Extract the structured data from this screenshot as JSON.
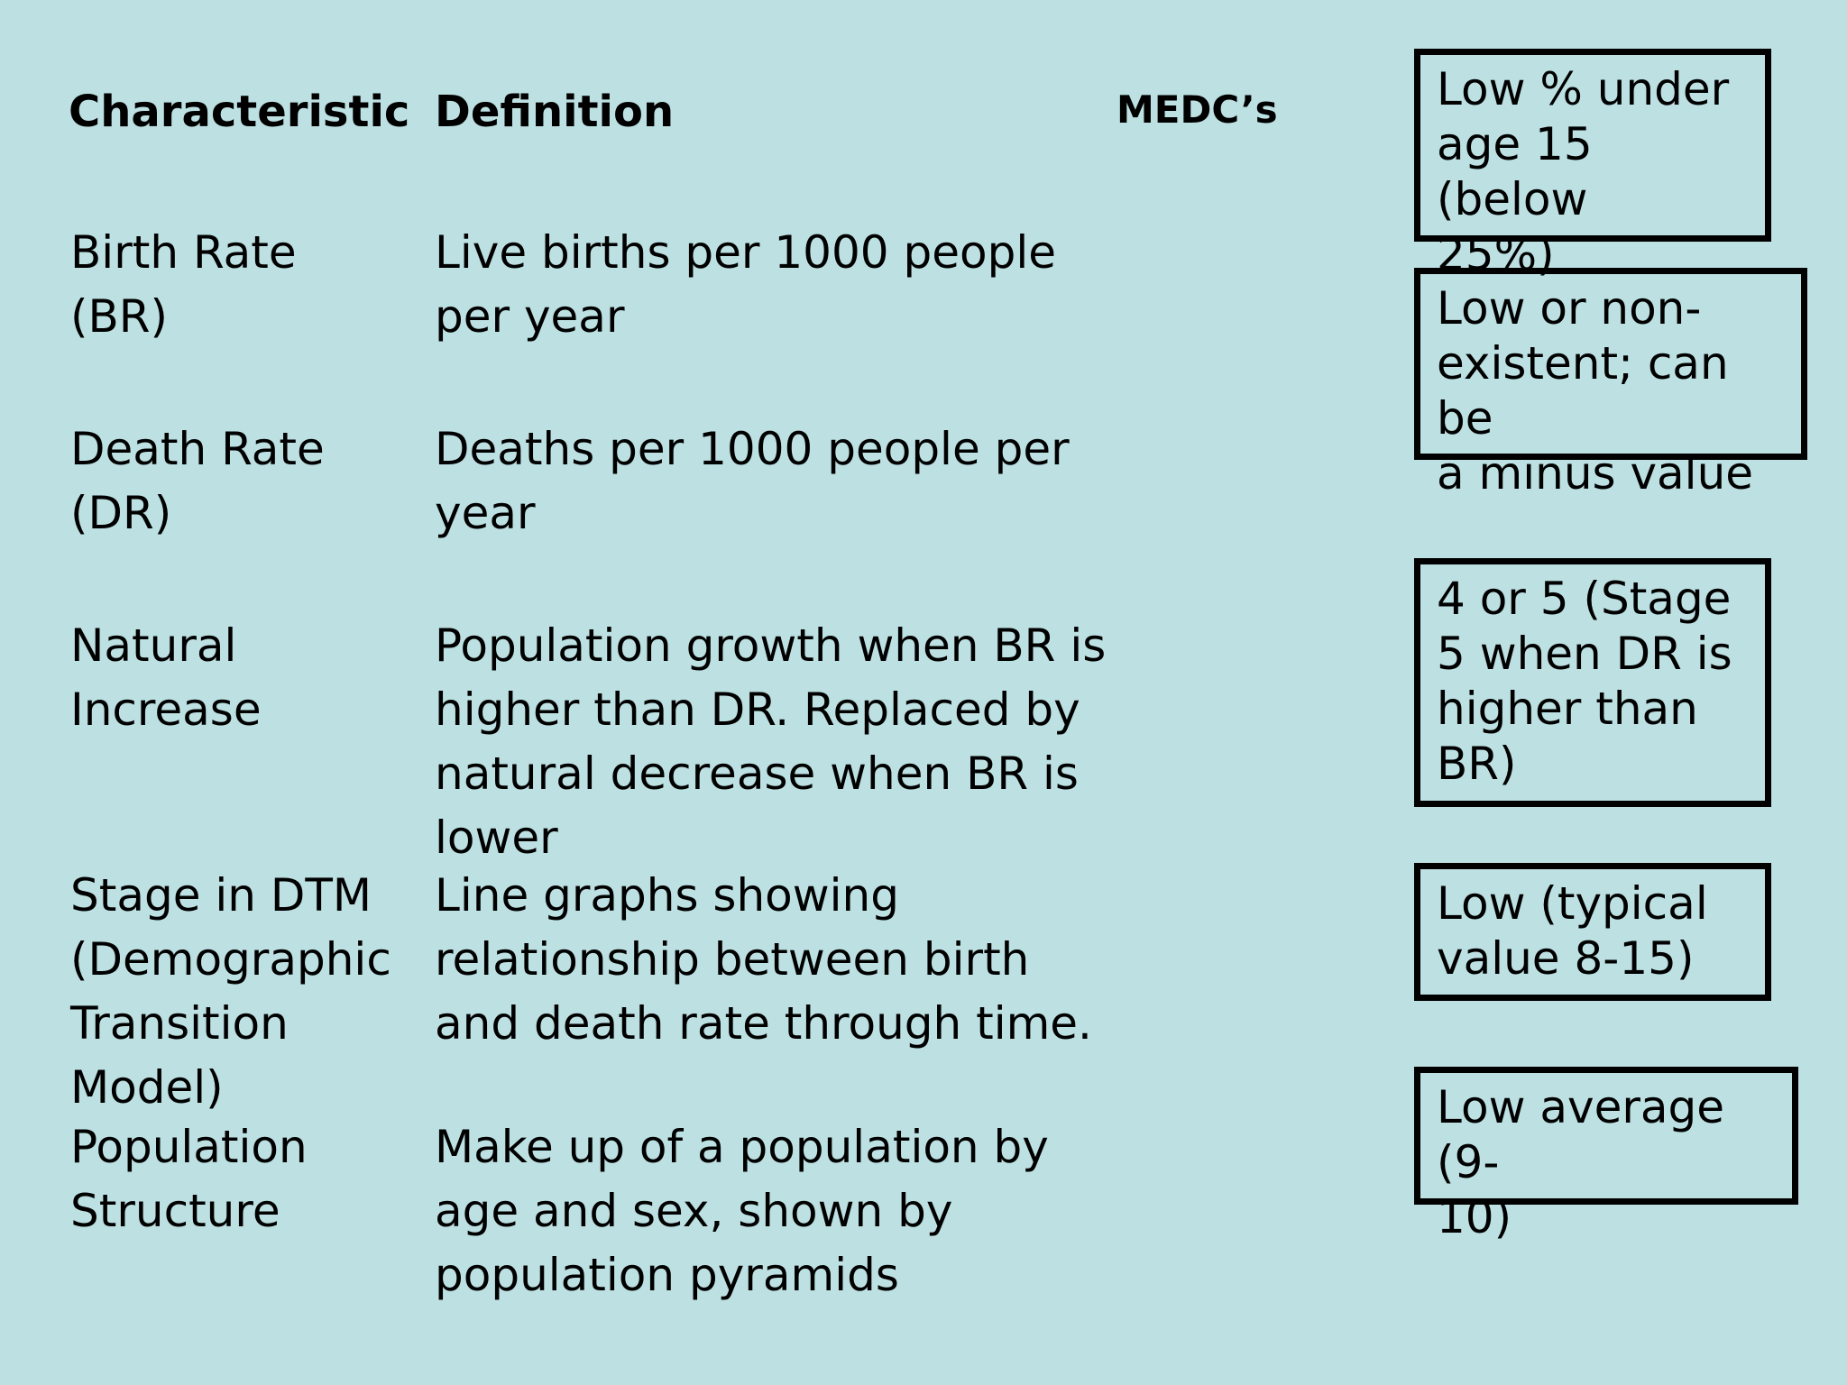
{
  "headers": {
    "characteristic": "Characteristic",
    "definition": "Definition",
    "medcs": "MEDC’s"
  },
  "rows": [
    {
      "characteristic": "Birth Rate\n(BR)",
      "definition": "Live births per 1000 people\nper year"
    },
    {
      "characteristic": "Death Rate\n(DR)",
      "definition": "Deaths per 1000 people per\nyear"
    },
    {
      "characteristic": "Natural\nIncrease",
      "definition": "Population growth when BR is\nhigher than DR. Replaced by\nnatural decrease when BR is\nlower"
    },
    {
      "characteristic": "Stage in DTM\n(Demographic\nTransition\nModel)",
      "definition": "Line graphs showing\nrelationship between birth\nand death rate through time."
    },
    {
      "characteristic": "Population\nStructure",
      "definition": "Make up of a population by\nage and sex, shown by\npopulation pyramids"
    }
  ],
  "medc_boxes": [
    "Low % under\nage 15 (below\n25%)",
    "Low or non-\nexistent; can be\na minus value",
    "4 or 5 (Stage\n5 when DR is\nhigher than\nBR)",
    "Low (typical\nvalue 8-15)",
    "Low average (9-\n10)"
  ]
}
